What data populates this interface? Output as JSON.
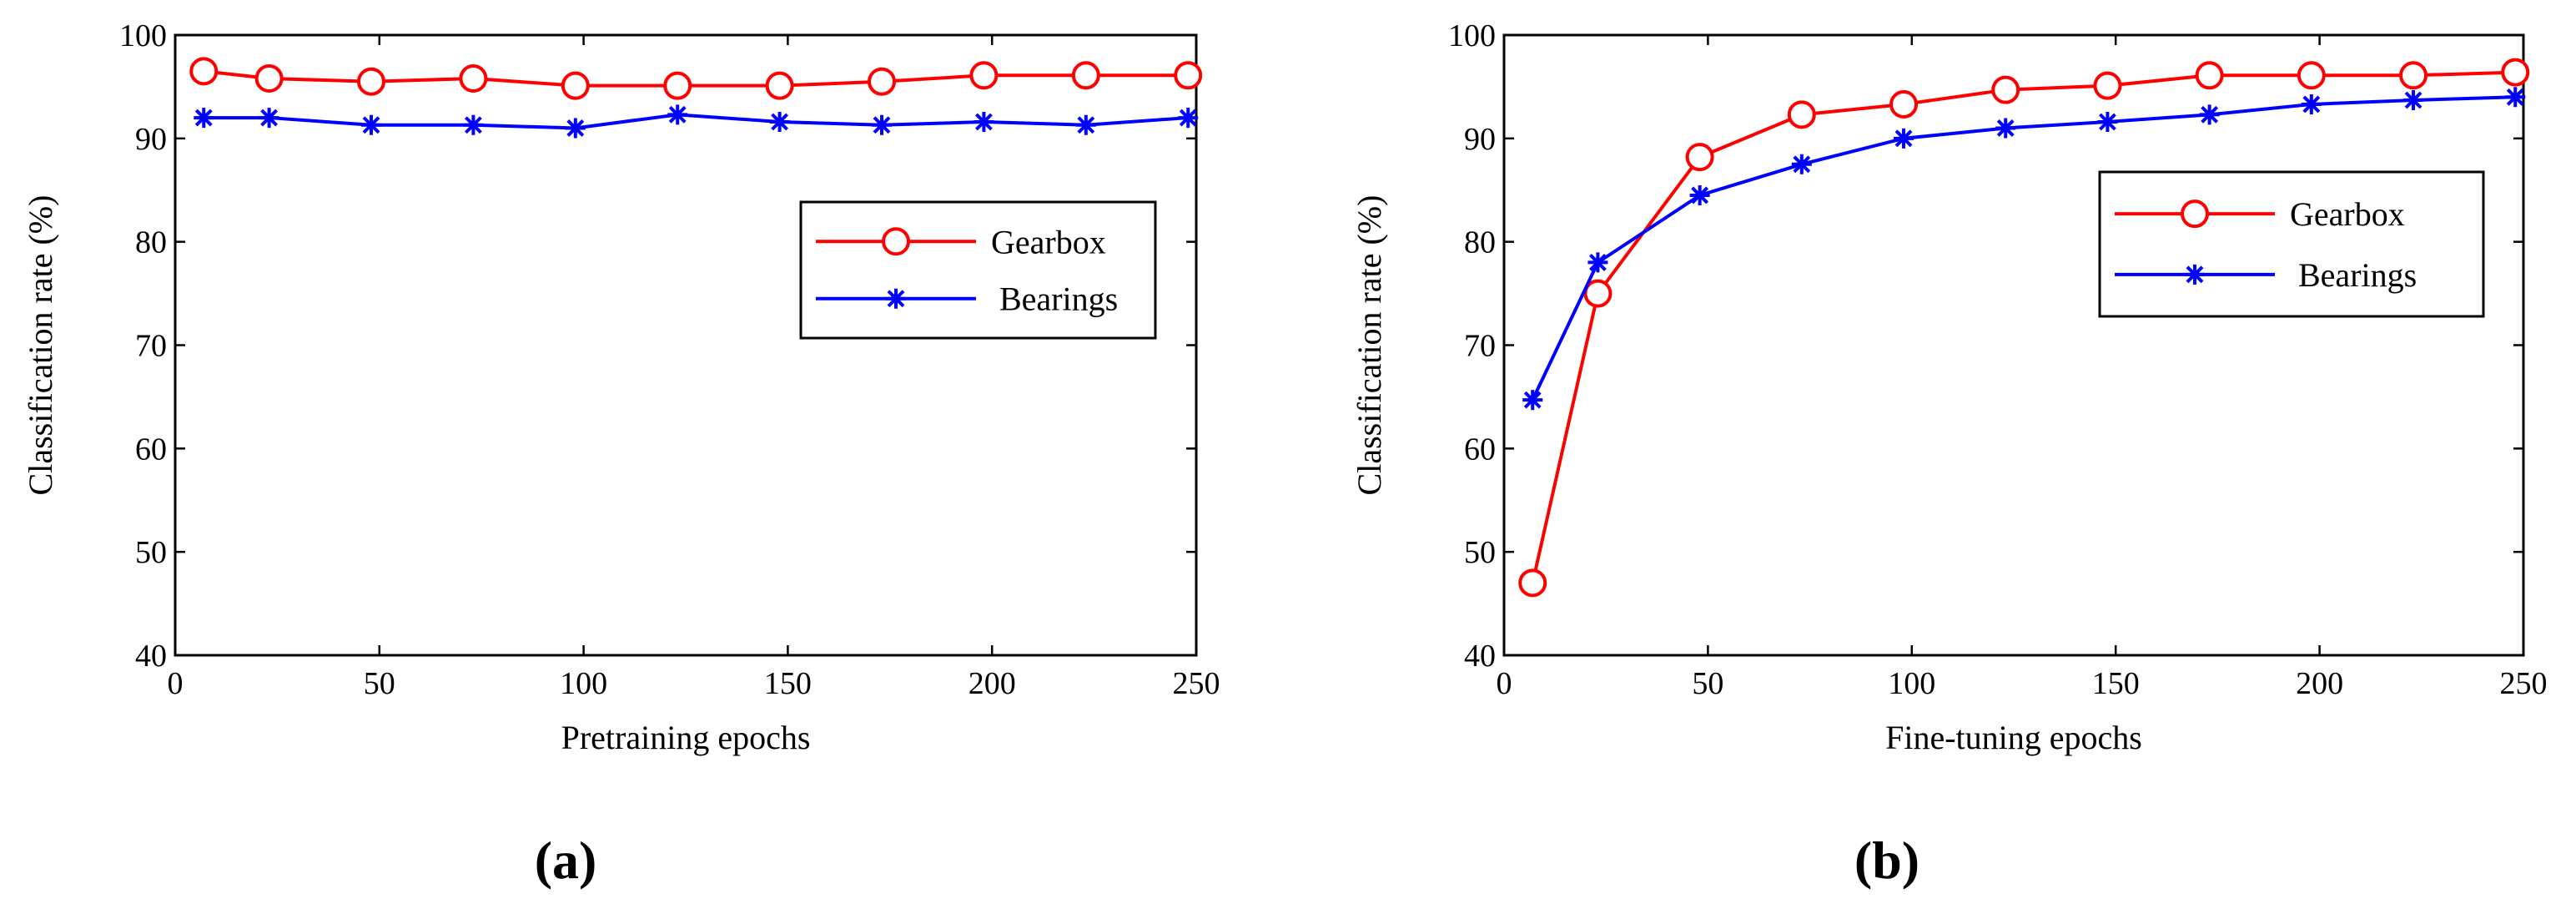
{
  "chart_data": [
    {
      "type": "line",
      "panel_label": "(a)",
      "title": "",
      "xlabel": "Pretraining epochs",
      "ylabel": "Classification rate (%)",
      "xlim": [
        0,
        250
      ],
      "ylim": [
        40,
        100
      ],
      "xticks": [
        0,
        50,
        100,
        150,
        200,
        250
      ],
      "yticks": [
        40,
        50,
        60,
        70,
        80,
        90,
        100
      ],
      "grid": false,
      "legend_position": "right",
      "x": [
        7,
        23,
        48,
        73,
        98,
        123,
        148,
        173,
        198,
        223,
        248
      ],
      "series": [
        {
          "name": "Gearbox",
          "color": "#ff0000",
          "marker": "circle",
          "values": [
            96.5,
            95.8,
            95.5,
            95.8,
            95.1,
            95.1,
            95.1,
            95.5,
            96.1,
            96.1,
            96.1
          ]
        },
        {
          "name": "Bearings",
          "color": "#0000ff",
          "marker": "star",
          "values": [
            92.0,
            92.0,
            91.3,
            91.3,
            91.0,
            92.3,
            91.6,
            91.3,
            91.6,
            91.3,
            92.0
          ]
        }
      ]
    },
    {
      "type": "line",
      "panel_label": "(b)",
      "title": "",
      "xlabel": "Fine-tuning epochs",
      "ylabel": "Classification rate (%)",
      "xlim": [
        0,
        250
      ],
      "ylim": [
        40,
        100
      ],
      "xticks": [
        0,
        50,
        100,
        150,
        200,
        250
      ],
      "yticks": [
        40,
        50,
        60,
        70,
        80,
        90,
        100
      ],
      "grid": false,
      "legend_position": "right",
      "x": [
        7,
        23,
        48,
        73,
        98,
        123,
        148,
        173,
        198,
        223,
        248
      ],
      "series": [
        {
          "name": "Gearbox",
          "color": "#ff0000",
          "marker": "circle",
          "values": [
            47.0,
            75.0,
            88.2,
            92.3,
            93.3,
            94.7,
            95.1,
            96.1,
            96.1,
            96.1,
            96.4
          ]
        },
        {
          "name": "Bearings",
          "color": "#0000ff",
          "marker": "star",
          "values": [
            64.7,
            78.0,
            84.5,
            87.5,
            90.0,
            91.0,
            91.6,
            92.3,
            93.3,
            93.7,
            94.0
          ]
        }
      ]
    }
  ]
}
